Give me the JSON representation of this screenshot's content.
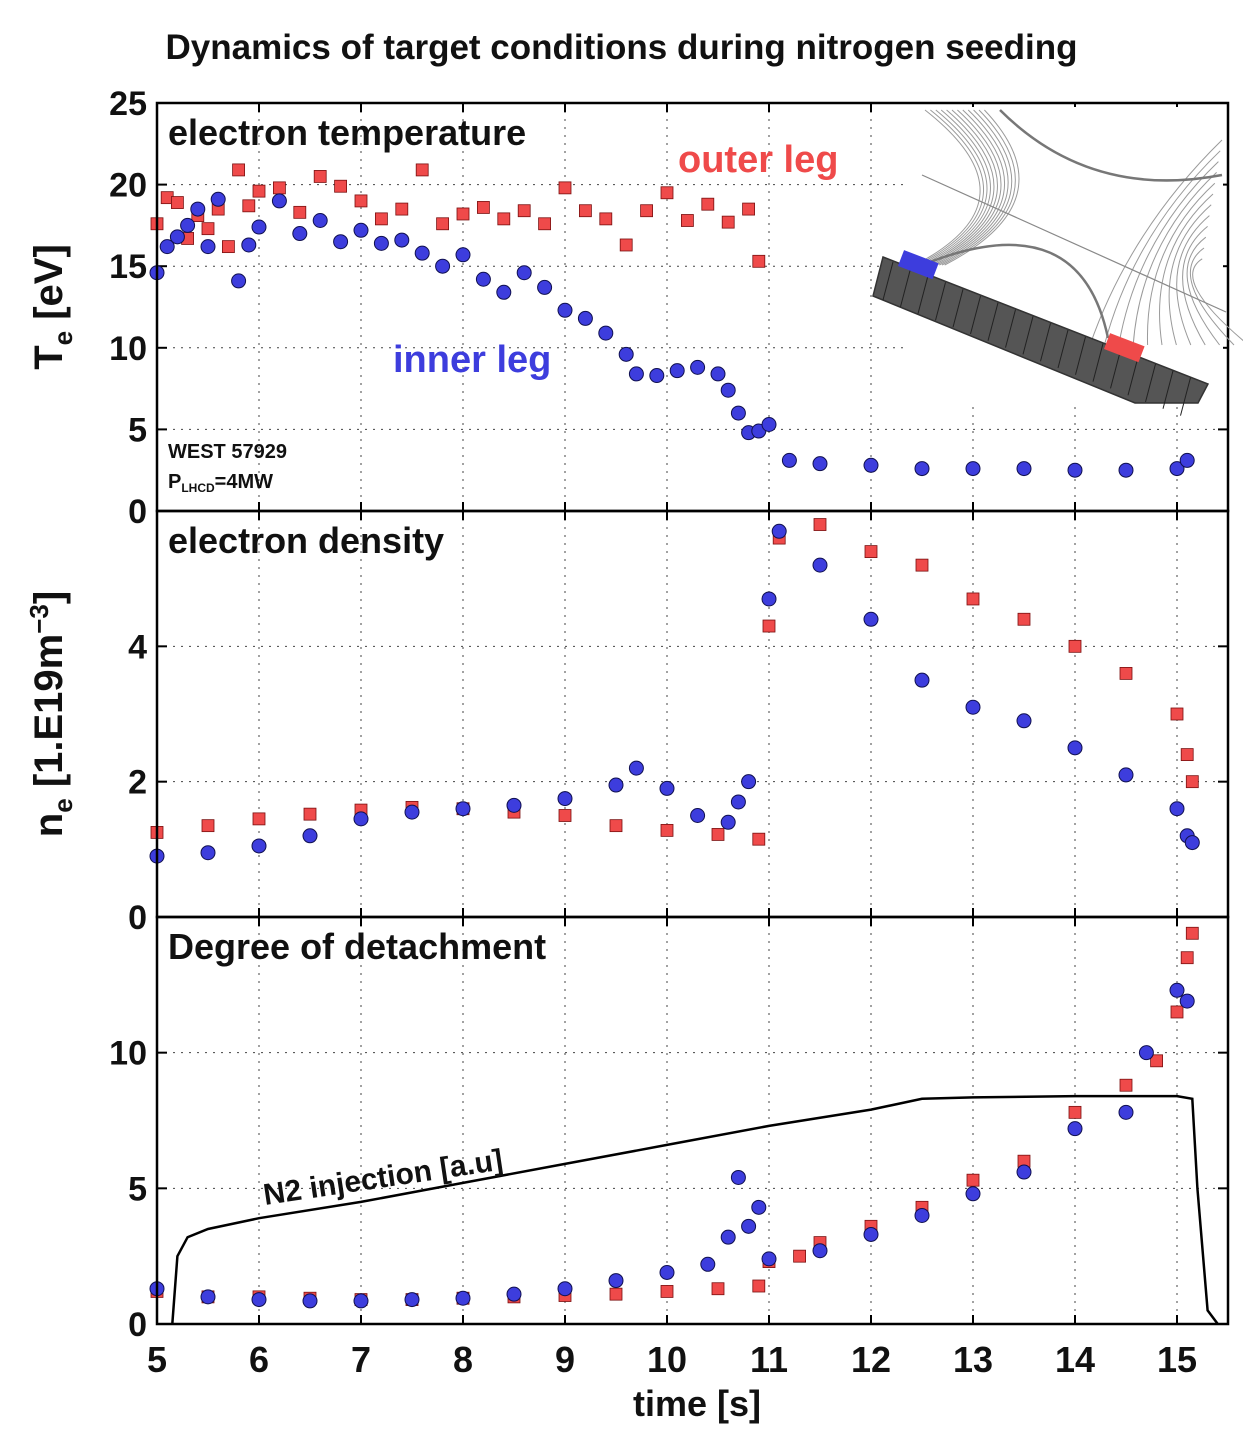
{
  "figure": {
    "title": "Dynamics of target conditions during nitrogen seeding",
    "xlabel": "time [s]",
    "xticks": [
      "5",
      "6",
      "7",
      "8",
      "9",
      "10",
      "11",
      "12",
      "13",
      "14",
      "15"
    ]
  },
  "colors": {
    "outer": "#ef4a4a",
    "inner": "#3d3ddd",
    "line": "#000000",
    "grid": "#444444"
  },
  "chart_data": [
    {
      "type": "scatter",
      "title": "electron temperature",
      "ylabel": "T",
      "ylabel_sub": "e",
      "ylabel_unit": "[eV]",
      "ylim": [
        0,
        25
      ],
      "xlim": [
        5,
        15.5
      ],
      "yticks": [
        "0",
        "5",
        "10",
        "15",
        "20",
        "25"
      ],
      "grid": true,
      "annotations": {
        "outer": "outer leg",
        "inner": "inner leg",
        "shot": "WEST 57929",
        "power_main": "P",
        "power_sub": "LHCD",
        "power_tail": "=4MW"
      },
      "series": [
        {
          "key": "outer",
          "name": "outer leg",
          "marker": "square",
          "points": [
            [
              5.0,
              17.6
            ],
            [
              5.1,
              19.2
            ],
            [
              5.2,
              18.9
            ],
            [
              5.3,
              16.7
            ],
            [
              5.4,
              18.1
            ],
            [
              5.5,
              17.3
            ],
            [
              5.6,
              18.5
            ],
            [
              5.7,
              16.2
            ],
            [
              5.8,
              20.9
            ],
            [
              5.9,
              18.7
            ],
            [
              6.0,
              19.6
            ],
            [
              6.2,
              19.8
            ],
            [
              6.4,
              18.3
            ],
            [
              6.6,
              20.5
            ],
            [
              6.8,
              19.9
            ],
            [
              7.0,
              19.0
            ],
            [
              7.2,
              17.9
            ],
            [
              7.4,
              18.5
            ],
            [
              7.6,
              20.9
            ],
            [
              7.8,
              17.6
            ],
            [
              8.0,
              18.2
            ],
            [
              8.2,
              18.6
            ],
            [
              8.4,
              17.9
            ],
            [
              8.6,
              18.4
            ],
            [
              8.8,
              17.6
            ],
            [
              9.0,
              19.8
            ],
            [
              9.2,
              18.4
            ],
            [
              9.4,
              17.9
            ],
            [
              9.6,
              16.3
            ],
            [
              9.8,
              18.4
            ],
            [
              10.0,
              19.5
            ],
            [
              10.2,
              17.8
            ],
            [
              10.4,
              18.8
            ],
            [
              10.6,
              17.7
            ],
            [
              10.8,
              18.5
            ],
            [
              10.9,
              15.3
            ]
          ]
        },
        {
          "key": "inner",
          "name": "inner leg",
          "marker": "circle",
          "points": [
            [
              5.0,
              14.6
            ],
            [
              5.1,
              16.2
            ],
            [
              5.2,
              16.8
            ],
            [
              5.3,
              17.5
            ],
            [
              5.4,
              18.5
            ],
            [
              5.5,
              16.2
            ],
            [
              5.6,
              19.1
            ],
            [
              5.8,
              14.1
            ],
            [
              5.9,
              16.3
            ],
            [
              6.0,
              17.4
            ],
            [
              6.2,
              19.0
            ],
            [
              6.4,
              17.0
            ],
            [
              6.6,
              17.8
            ],
            [
              6.8,
              16.5
            ],
            [
              7.0,
              17.2
            ],
            [
              7.2,
              16.4
            ],
            [
              7.4,
              16.6
            ],
            [
              7.6,
              15.8
            ],
            [
              7.8,
              15.0
            ],
            [
              8.0,
              15.7
            ],
            [
              8.2,
              14.2
            ],
            [
              8.4,
              13.4
            ],
            [
              8.6,
              14.6
            ],
            [
              8.8,
              13.7
            ],
            [
              9.0,
              12.3
            ],
            [
              9.2,
              11.8
            ],
            [
              9.4,
              10.9
            ],
            [
              9.6,
              9.6
            ],
            [
              9.7,
              8.4
            ],
            [
              9.9,
              8.3
            ],
            [
              10.1,
              8.6
            ],
            [
              10.3,
              8.8
            ],
            [
              10.5,
              8.4
            ],
            [
              10.6,
              7.4
            ],
            [
              10.7,
              6.0
            ],
            [
              10.8,
              4.8
            ],
            [
              10.9,
              4.9
            ],
            [
              11.0,
              5.3
            ],
            [
              11.2,
              3.1
            ],
            [
              11.5,
              2.9
            ],
            [
              12.0,
              2.8
            ],
            [
              12.5,
              2.6
            ],
            [
              13.0,
              2.6
            ],
            [
              13.5,
              2.6
            ],
            [
              14.0,
              2.5
            ],
            [
              14.5,
              2.5
            ],
            [
              15.0,
              2.6
            ],
            [
              15.1,
              3.1
            ]
          ]
        }
      ]
    },
    {
      "type": "scatter",
      "title": "electron density",
      "ylabel": "n",
      "ylabel_sub": "e",
      "ylabel_unit": "[1.E19m",
      "ylabel_sup": "−3",
      "ylabel_close": "]",
      "ylim": [
        0,
        6
      ],
      "xlim": [
        5,
        15.5
      ],
      "yticks": [
        "0",
        "2",
        "4"
      ],
      "grid": true,
      "series": [
        {
          "key": "outer",
          "name": "outer leg",
          "marker": "square",
          "points": [
            [
              5.0,
              1.25
            ],
            [
              5.5,
              1.35
            ],
            [
              6.0,
              1.45
            ],
            [
              6.5,
              1.52
            ],
            [
              7.0,
              1.58
            ],
            [
              7.5,
              1.62
            ],
            [
              8.0,
              1.6
            ],
            [
              8.5,
              1.55
            ],
            [
              9.0,
              1.5
            ],
            [
              9.5,
              1.35
            ],
            [
              10.0,
              1.28
            ],
            [
              10.5,
              1.22
            ],
            [
              10.9,
              1.15
            ],
            [
              11.0,
              4.3
            ],
            [
              11.1,
              5.6
            ],
            [
              11.5,
              5.8
            ],
            [
              12.0,
              5.4
            ],
            [
              12.5,
              5.2
            ],
            [
              13.0,
              4.7
            ],
            [
              13.5,
              4.4
            ],
            [
              14.0,
              4.0
            ],
            [
              14.5,
              3.6
            ],
            [
              15.0,
              3.0
            ],
            [
              15.1,
              2.4
            ],
            [
              15.15,
              2.0
            ]
          ]
        },
        {
          "key": "inner",
          "name": "inner leg",
          "marker": "circle",
          "points": [
            [
              5.0,
              0.9
            ],
            [
              5.5,
              0.95
            ],
            [
              6.0,
              1.05
            ],
            [
              6.5,
              1.2
            ],
            [
              7.0,
              1.45
            ],
            [
              7.5,
              1.55
            ],
            [
              8.0,
              1.6
            ],
            [
              8.5,
              1.65
            ],
            [
              9.0,
              1.75
            ],
            [
              9.5,
              1.95
            ],
            [
              9.7,
              2.2
            ],
            [
              10.0,
              1.9
            ],
            [
              10.3,
              1.5
            ],
            [
              10.6,
              1.4
            ],
            [
              10.7,
              1.7
            ],
            [
              10.8,
              2.0
            ],
            [
              11.0,
              4.7
            ],
            [
              11.1,
              5.7
            ],
            [
              11.5,
              5.2
            ],
            [
              12.0,
              4.4
            ],
            [
              12.5,
              3.5
            ],
            [
              13.0,
              3.1
            ],
            [
              13.5,
              2.9
            ],
            [
              14.0,
              2.5
            ],
            [
              14.5,
              2.1
            ],
            [
              15.0,
              1.6
            ],
            [
              15.1,
              1.2
            ],
            [
              15.15,
              1.1
            ]
          ]
        }
      ]
    },
    {
      "type": "scatter",
      "title": "Degree of detachment",
      "ylim": [
        0,
        15
      ],
      "xlim": [
        5,
        15.5
      ],
      "yticks": [
        "0",
        "5",
        "10"
      ],
      "grid": true,
      "annotations": {
        "n2": "N2 injection [a.u]"
      },
      "series": [
        {
          "key": "outer",
          "name": "outer leg",
          "marker": "square",
          "points": [
            [
              5.0,
              1.2
            ],
            [
              5.5,
              1.0
            ],
            [
              6.0,
              1.0
            ],
            [
              6.5,
              0.95
            ],
            [
              7.0,
              0.9
            ],
            [
              7.5,
              0.9
            ],
            [
              8.0,
              0.95
            ],
            [
              8.5,
              1.0
            ],
            [
              9.0,
              1.05
            ],
            [
              9.5,
              1.1
            ],
            [
              10.0,
              1.2
            ],
            [
              10.5,
              1.3
            ],
            [
              10.9,
              1.4
            ],
            [
              11.0,
              2.3
            ],
            [
              11.3,
              2.5
            ],
            [
              11.5,
              3.0
            ],
            [
              12.0,
              3.6
            ],
            [
              12.5,
              4.3
            ],
            [
              13.0,
              5.3
            ],
            [
              13.5,
              6.0
            ],
            [
              14.0,
              7.8
            ],
            [
              14.5,
              8.8
            ],
            [
              14.8,
              9.7
            ],
            [
              15.0,
              11.5
            ],
            [
              15.1,
              13.5
            ],
            [
              15.15,
              14.4
            ]
          ]
        },
        {
          "key": "inner",
          "name": "inner leg",
          "marker": "circle",
          "points": [
            [
              5.0,
              1.3
            ],
            [
              5.5,
              1.0
            ],
            [
              6.0,
              0.9
            ],
            [
              6.5,
              0.85
            ],
            [
              7.0,
              0.85
            ],
            [
              7.5,
              0.9
            ],
            [
              8.0,
              0.95
            ],
            [
              8.5,
              1.1
            ],
            [
              9.0,
              1.3
            ],
            [
              9.5,
              1.6
            ],
            [
              10.0,
              1.9
            ],
            [
              10.4,
              2.2
            ],
            [
              10.6,
              3.2
            ],
            [
              10.7,
              5.4
            ],
            [
              10.8,
              3.6
            ],
            [
              10.9,
              4.3
            ],
            [
              11.0,
              2.4
            ],
            [
              11.5,
              2.7
            ],
            [
              12.0,
              3.3
            ],
            [
              12.5,
              4.0
            ],
            [
              13.0,
              4.8
            ],
            [
              13.5,
              5.6
            ],
            [
              14.0,
              7.2
            ],
            [
              14.5,
              7.8
            ],
            [
              14.7,
              10.0
            ],
            [
              15.0,
              12.3
            ],
            [
              15.1,
              11.9
            ]
          ]
        },
        {
          "key": "line",
          "name": "N2 injection [a.u]",
          "marker": "line",
          "points": [
            [
              5.15,
              0.0
            ],
            [
              5.2,
              2.5
            ],
            [
              5.3,
              3.2
            ],
            [
              5.5,
              3.5
            ],
            [
              6.0,
              3.9
            ],
            [
              7.0,
              4.5
            ],
            [
              8.0,
              5.2
            ],
            [
              9.0,
              5.9
            ],
            [
              10.0,
              6.6
            ],
            [
              11.0,
              7.3
            ],
            [
              12.0,
              7.9
            ],
            [
              12.5,
              8.3
            ],
            [
              13.0,
              8.35
            ],
            [
              14.0,
              8.4
            ],
            [
              15.0,
              8.4
            ],
            [
              15.15,
              8.3
            ],
            [
              15.2,
              5.0
            ],
            [
              15.3,
              0.5
            ],
            [
              15.4,
              0.0
            ]
          ]
        }
      ]
    }
  ]
}
